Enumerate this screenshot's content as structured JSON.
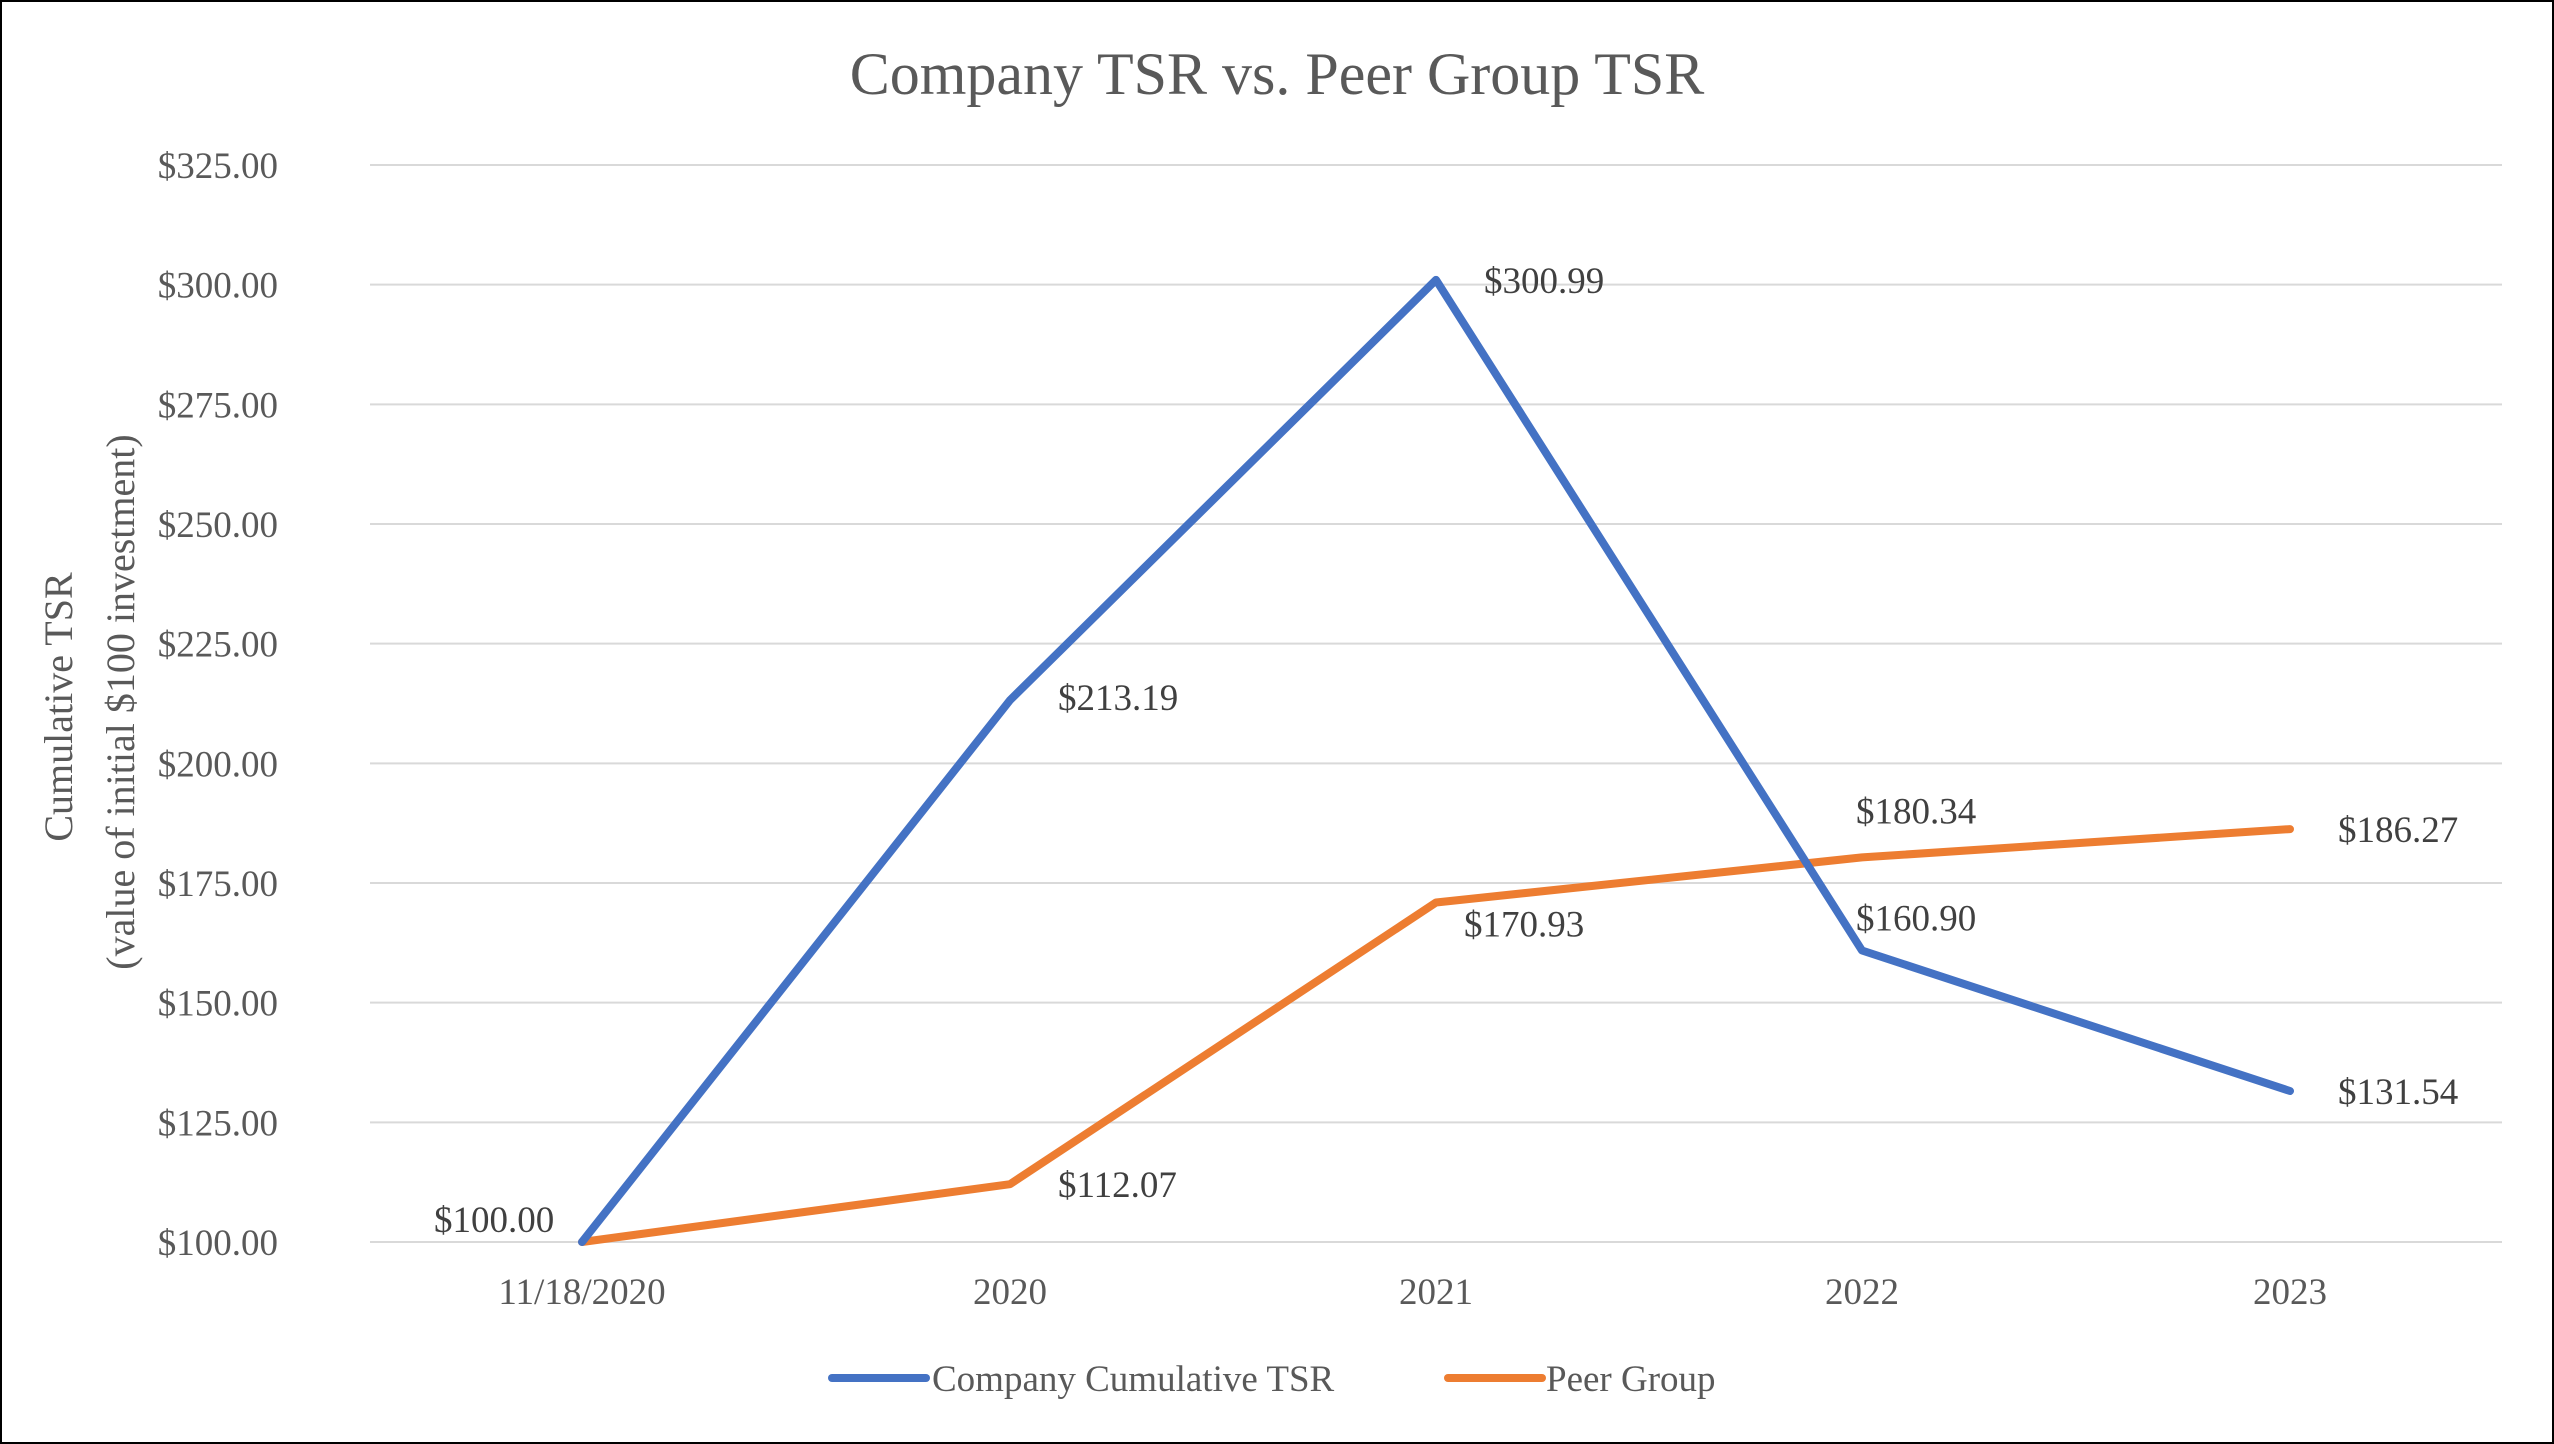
{
  "chart_data": {
    "type": "line",
    "title": "Company TSR vs. Peer Group TSR",
    "ylabel_lines": [
      "Cumulative TSR",
      "(value of initial $100 investment)"
    ],
    "xlabel": "",
    "categories": [
      "11/18/2020",
      "2020",
      "2021",
      "2022",
      "2023"
    ],
    "ylim": [
      100,
      325
    ],
    "ytick_values": [
      100,
      125,
      150,
      175,
      200,
      225,
      250,
      275,
      300,
      325
    ],
    "ytick_labels": [
      "$100.00",
      "$125.00",
      "$150.00",
      "$175.00",
      "$200.00",
      "$225.00",
      "$250.00",
      "$275.00",
      "$300.00",
      "$325.00"
    ],
    "grid": true,
    "legend_position": "bottom",
    "series": [
      {
        "name": "Company Cumulative TSR",
        "color": "#4472C4",
        "values": [
          100.0,
          213.19,
          300.99,
          160.9,
          131.54
        ],
        "data_labels": [
          "$100.00",
          "$213.19",
          "$300.99",
          "$160.90",
          "$131.54"
        ]
      },
      {
        "name": "Peer Group",
        "color": "#ED7D31",
        "values": [
          100.0,
          112.07,
          170.93,
          180.34,
          186.27
        ],
        "data_labels": [
          "",
          "$112.07",
          "$170.93",
          "$180.34",
          "$186.27"
        ]
      }
    ]
  }
}
